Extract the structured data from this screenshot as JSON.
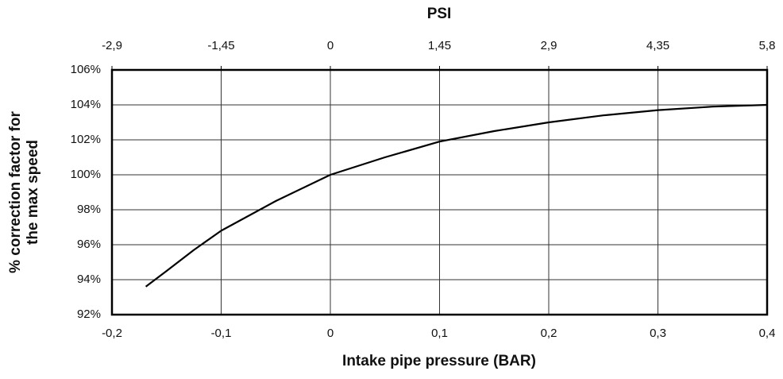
{
  "chart_data": {
    "type": "line",
    "xlabel": "Intake pipe pressure  (BAR)",
    "x2label": "PSI",
    "ylabel": [
      "% correction factor for",
      "the max speed"
    ],
    "xlim": [
      -0.2,
      0.4
    ],
    "xticks": [
      {
        "value": -0.2,
        "label": "-0,2"
      },
      {
        "value": -0.1,
        "label": "-0,1"
      },
      0,
      {
        "value": 0.1,
        "label": "0,1"
      },
      {
        "value": 0.2,
        "label": "0,2"
      },
      {
        "value": 0.3,
        "label": "0,3"
      },
      {
        "value": 0.4,
        "label": "0,4"
      }
    ],
    "x2lim": [
      -2.9,
      5.8
    ],
    "x2ticks": [
      {
        "value": -2.9,
        "label": "-2,9"
      },
      {
        "value": -1.45,
        "label": "-1,45"
      },
      0,
      {
        "value": 1.45,
        "label": "1,45"
      },
      {
        "value": 2.9,
        "label": "2,9"
      },
      {
        "value": 4.35,
        "label": "4,35"
      },
      {
        "value": 5.8,
        "label": "5,8"
      }
    ],
    "ylim": [
      92,
      106
    ],
    "yticks": [
      {
        "value": 92,
        "label": "92%"
      },
      {
        "value": 94,
        "label": "94%"
      },
      {
        "value": 96,
        "label": "96%"
      },
      {
        "value": 98,
        "label": "98%"
      },
      {
        "value": 100,
        "label": "100%"
      },
      {
        "value": 102,
        "label": "102%"
      },
      {
        "value": 104,
        "label": "104%"
      },
      {
        "value": 106,
        "label": "106%"
      }
    ],
    "grid": true,
    "series": [
      {
        "color": "#000000",
        "x": [
          -0.169,
          -0.15,
          -0.125,
          -0.1,
          -0.05,
          0,
          0.05,
          0.1,
          0.15,
          0.2,
          0.25,
          0.3,
          0.35,
          0.4
        ],
        "values": [
          93.6,
          94.5,
          95.7,
          96.8,
          98.5,
          100,
          101.0,
          101.9,
          102.5,
          103.0,
          103.4,
          103.7,
          103.9,
          104.0
        ]
      }
    ]
  }
}
